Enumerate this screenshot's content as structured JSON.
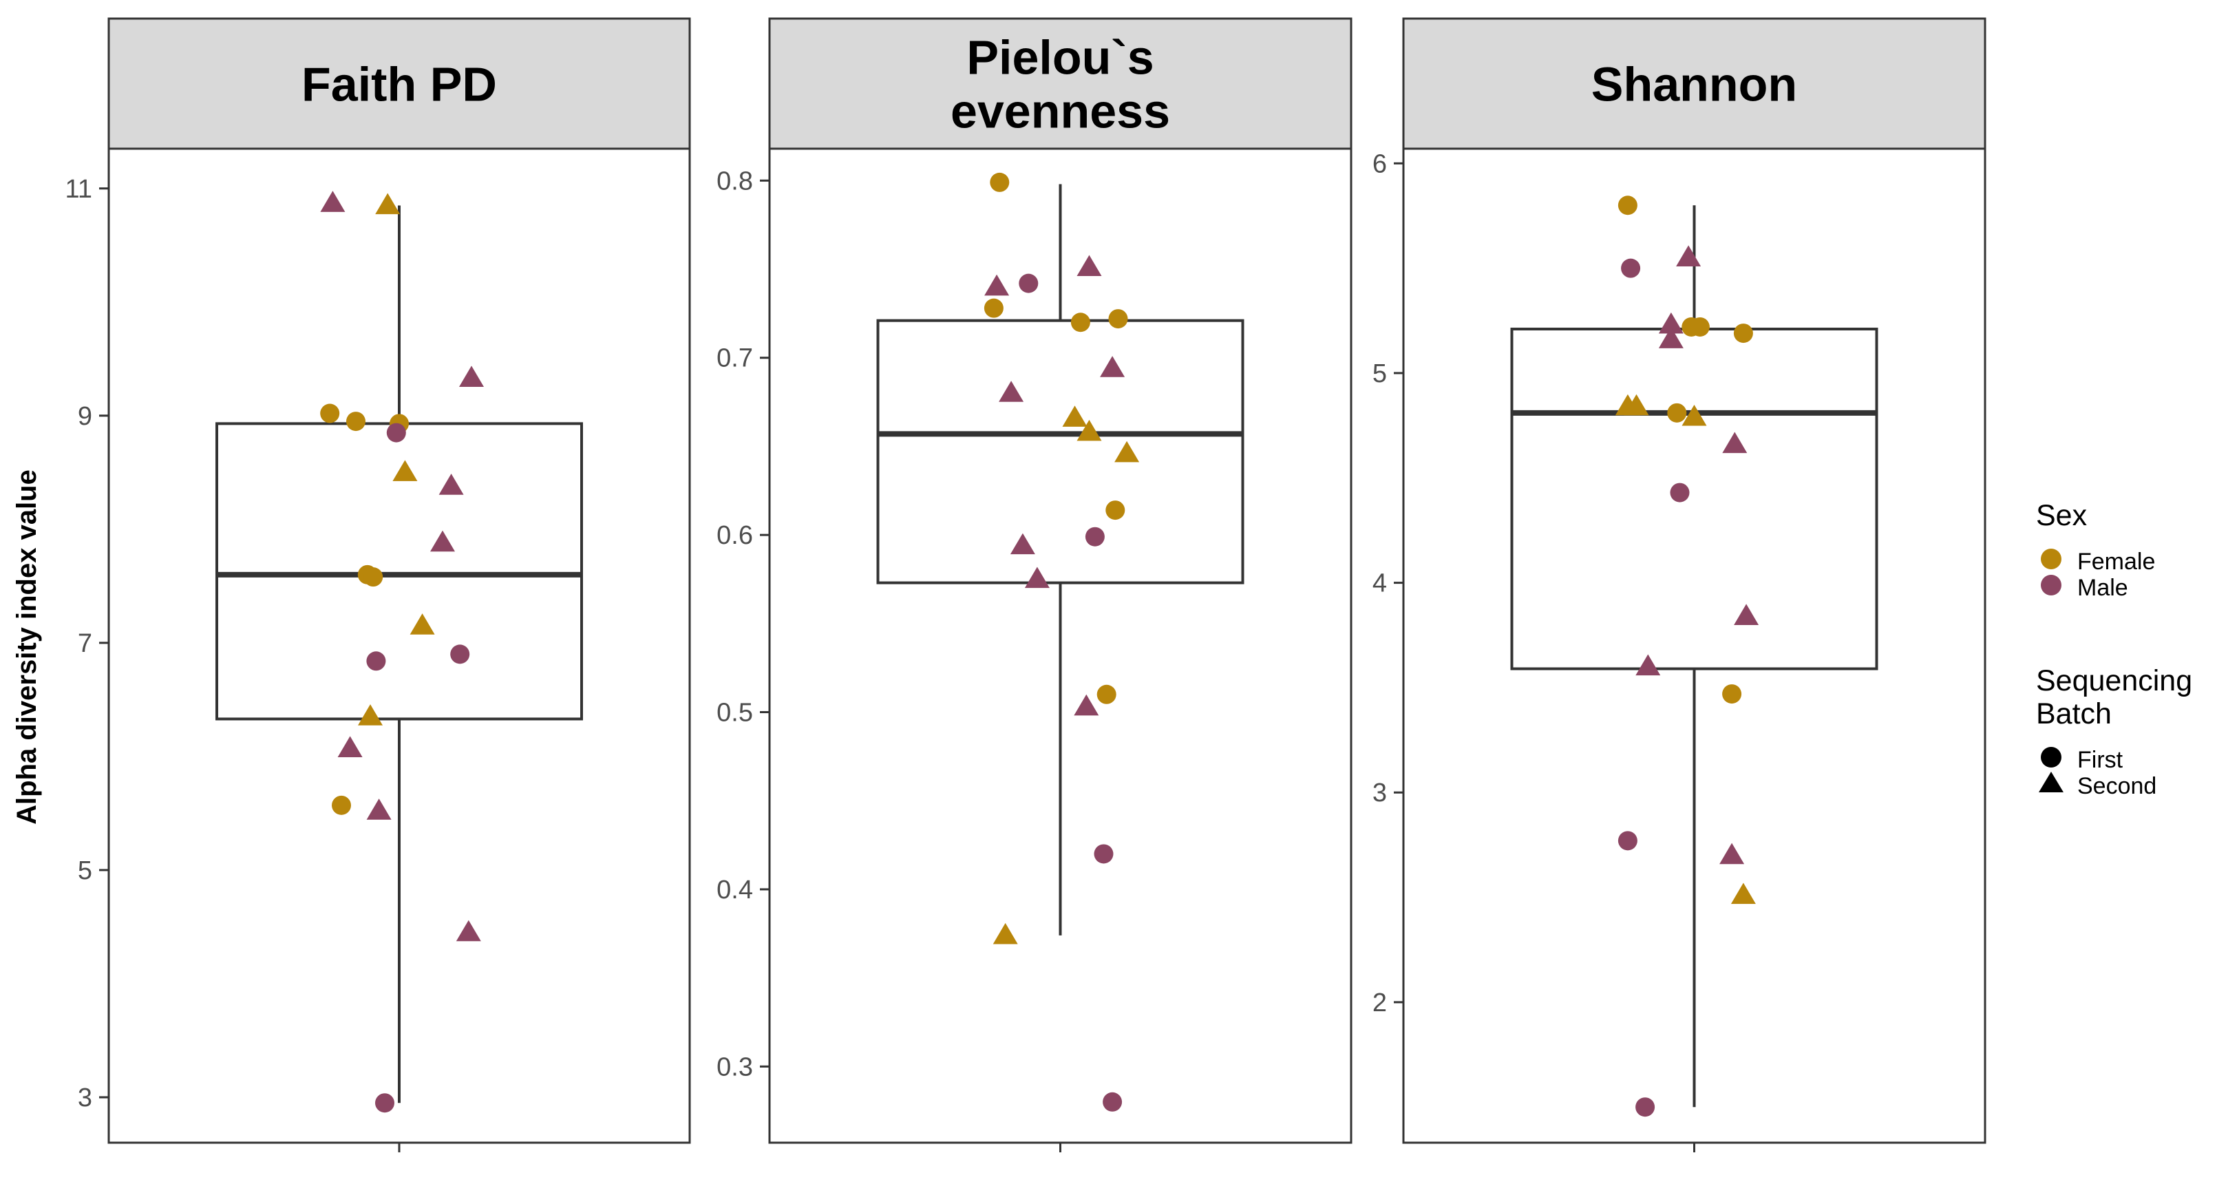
{
  "chart_data": {
    "type": "box-jitter",
    "ylabel": "Alpha diversity index value",
    "colors": {
      "Female": "#B8860B",
      "Male": "#8B4562",
      "box": "#333333",
      "strip": "#d9d9d9",
      "axis": "#333333",
      "tick_text": "#4d4d4d"
    },
    "legend": {
      "sex_title": "Sex",
      "sex_items": [
        "Female",
        "Male"
      ],
      "batch_title_lines": [
        "Sequencing",
        "Batch"
      ],
      "batch_items": [
        "First",
        "Second"
      ]
    },
    "panels": [
      {
        "title_lines": [
          "Faith PD"
        ],
        "ylim": [
          2.6,
          11.35
        ],
        "yticks": [
          3,
          5,
          7,
          9,
          11
        ],
        "box": {
          "min": 2.95,
          "q1": 6.33,
          "median": 7.6,
          "q3": 8.93,
          "max": 10.85
        },
        "points": [
          {
            "x": -0.23,
            "y": 10.87,
            "sex": "Male",
            "batch": "Second"
          },
          {
            "x": -0.04,
            "y": 10.85,
            "sex": "Female",
            "batch": "Second"
          },
          {
            "x": 0.25,
            "y": 9.33,
            "sex": "Male",
            "batch": "Second"
          },
          {
            "x": -0.24,
            "y": 9.02,
            "sex": "Female",
            "batch": "First"
          },
          {
            "x": -0.15,
            "y": 8.95,
            "sex": "Female",
            "batch": "First"
          },
          {
            "x": 0.0,
            "y": 8.93,
            "sex": "Female",
            "batch": "First"
          },
          {
            "x": -0.01,
            "y": 8.85,
            "sex": "Male",
            "batch": "First"
          },
          {
            "x": 0.02,
            "y": 8.5,
            "sex": "Female",
            "batch": "Second"
          },
          {
            "x": 0.18,
            "y": 8.38,
            "sex": "Male",
            "batch": "Second"
          },
          {
            "x": 0.15,
            "y": 7.88,
            "sex": "Male",
            "batch": "Second"
          },
          {
            "x": -0.11,
            "y": 7.6,
            "sex": "Female",
            "batch": "First"
          },
          {
            "x": -0.09,
            "y": 7.58,
            "sex": "Female",
            "batch": "First"
          },
          {
            "x": 0.08,
            "y": 7.15,
            "sex": "Female",
            "batch": "Second"
          },
          {
            "x": 0.21,
            "y": 6.9,
            "sex": "Male",
            "batch": "First"
          },
          {
            "x": -0.08,
            "y": 6.84,
            "sex": "Male",
            "batch": "First"
          },
          {
            "x": -0.1,
            "y": 6.35,
            "sex": "Female",
            "batch": "Second"
          },
          {
            "x": -0.17,
            "y": 6.07,
            "sex": "Male",
            "batch": "Second"
          },
          {
            "x": -0.2,
            "y": 5.57,
            "sex": "Female",
            "batch": "First"
          },
          {
            "x": -0.07,
            "y": 5.52,
            "sex": "Male",
            "batch": "Second"
          },
          {
            "x": 0.24,
            "y": 4.45,
            "sex": "Male",
            "batch": "Second"
          },
          {
            "x": -0.05,
            "y": 2.95,
            "sex": "Male",
            "batch": "First"
          }
        ]
      },
      {
        "title_lines": [
          "Pielou`s",
          "evenness"
        ],
        "ylim": [
          0.257,
          0.818
        ],
        "yticks": [
          0.3,
          0.4,
          0.5,
          0.6,
          0.7,
          0.8
        ],
        "box": {
          "min": 0.374,
          "q1": 0.573,
          "median": 0.657,
          "q3": 0.721,
          "max": 0.798
        },
        "points": [
          {
            "x": -0.21,
            "y": 0.799,
            "sex": "Female",
            "batch": "First"
          },
          {
            "x": 0.1,
            "y": 0.751,
            "sex": "Male",
            "batch": "Second"
          },
          {
            "x": -0.22,
            "y": 0.74,
            "sex": "Male",
            "batch": "Second"
          },
          {
            "x": -0.11,
            "y": 0.742,
            "sex": "Male",
            "batch": "First"
          },
          {
            "x": -0.23,
            "y": 0.728,
            "sex": "Female",
            "batch": "First"
          },
          {
            "x": 0.07,
            "y": 0.72,
            "sex": "Female",
            "batch": "First"
          },
          {
            "x": 0.2,
            "y": 0.722,
            "sex": "Female",
            "batch": "First"
          },
          {
            "x": 0.18,
            "y": 0.694,
            "sex": "Male",
            "batch": "Second"
          },
          {
            "x": -0.17,
            "y": 0.68,
            "sex": "Male",
            "batch": "Second"
          },
          {
            "x": 0.05,
            "y": 0.666,
            "sex": "Female",
            "batch": "Second"
          },
          {
            "x": 0.1,
            "y": 0.658,
            "sex": "Female",
            "batch": "Second"
          },
          {
            "x": 0.23,
            "y": 0.646,
            "sex": "Female",
            "batch": "Second"
          },
          {
            "x": 0.19,
            "y": 0.614,
            "sex": "Female",
            "batch": "First"
          },
          {
            "x": 0.12,
            "y": 0.599,
            "sex": "Male",
            "batch": "First"
          },
          {
            "x": -0.13,
            "y": 0.594,
            "sex": "Male",
            "batch": "Second"
          },
          {
            "x": -0.08,
            "y": 0.575,
            "sex": "Male",
            "batch": "Second"
          },
          {
            "x": 0.16,
            "y": 0.51,
            "sex": "Female",
            "batch": "First"
          },
          {
            "x": 0.09,
            "y": 0.503,
            "sex": "Male",
            "batch": "Second"
          },
          {
            "x": 0.15,
            "y": 0.42,
            "sex": "Male",
            "batch": "First"
          },
          {
            "x": -0.19,
            "y": 0.374,
            "sex": "Female",
            "batch": "Second"
          },
          {
            "x": 0.18,
            "y": 0.28,
            "sex": "Male",
            "batch": "First"
          }
        ]
      },
      {
        "title_lines": [
          "Shannon"
        ],
        "ylim": [
          1.33,
          6.07
        ],
        "yticks": [
          2,
          3,
          4,
          5,
          6
        ],
        "box": {
          "min": 1.5,
          "q1": 3.59,
          "median": 4.81,
          "q3": 5.21,
          "max": 5.8
        },
        "points": [
          {
            "x": -0.23,
            "y": 5.8,
            "sex": "Female",
            "batch": "First"
          },
          {
            "x": -0.02,
            "y": 5.55,
            "sex": "Male",
            "batch": "Second"
          },
          {
            "x": -0.22,
            "y": 5.5,
            "sex": "Male",
            "batch": "First"
          },
          {
            "x": -0.08,
            "y": 5.23,
            "sex": "Male",
            "batch": "Second"
          },
          {
            "x": -0.08,
            "y": 5.16,
            "sex": "Male",
            "batch": "Second"
          },
          {
            "x": -0.01,
            "y": 5.22,
            "sex": "Female",
            "batch": "First"
          },
          {
            "x": 0.02,
            "y": 5.22,
            "sex": "Female",
            "batch": "First"
          },
          {
            "x": 0.17,
            "y": 5.19,
            "sex": "Female",
            "batch": "First"
          },
          {
            "x": -0.23,
            "y": 4.84,
            "sex": "Female",
            "batch": "Second"
          },
          {
            "x": -0.2,
            "y": 4.84,
            "sex": "Female",
            "batch": "Second"
          },
          {
            "x": -0.06,
            "y": 4.81,
            "sex": "Female",
            "batch": "First"
          },
          {
            "x": 0.0,
            "y": 4.79,
            "sex": "Female",
            "batch": "Second"
          },
          {
            "x": 0.14,
            "y": 4.66,
            "sex": "Male",
            "batch": "Second"
          },
          {
            "x": -0.05,
            "y": 4.43,
            "sex": "Male",
            "batch": "First"
          },
          {
            "x": 0.18,
            "y": 3.84,
            "sex": "Male",
            "batch": "Second"
          },
          {
            "x": -0.16,
            "y": 3.6,
            "sex": "Male",
            "batch": "Second"
          },
          {
            "x": 0.13,
            "y": 3.47,
            "sex": "Female",
            "batch": "First"
          },
          {
            "x": -0.23,
            "y": 2.77,
            "sex": "Male",
            "batch": "First"
          },
          {
            "x": 0.13,
            "y": 2.7,
            "sex": "Male",
            "batch": "Second"
          },
          {
            "x": 0.17,
            "y": 2.51,
            "sex": "Female",
            "batch": "Second"
          },
          {
            "x": -0.17,
            "y": 1.5,
            "sex": "Male",
            "batch": "First"
          }
        ]
      }
    ]
  }
}
